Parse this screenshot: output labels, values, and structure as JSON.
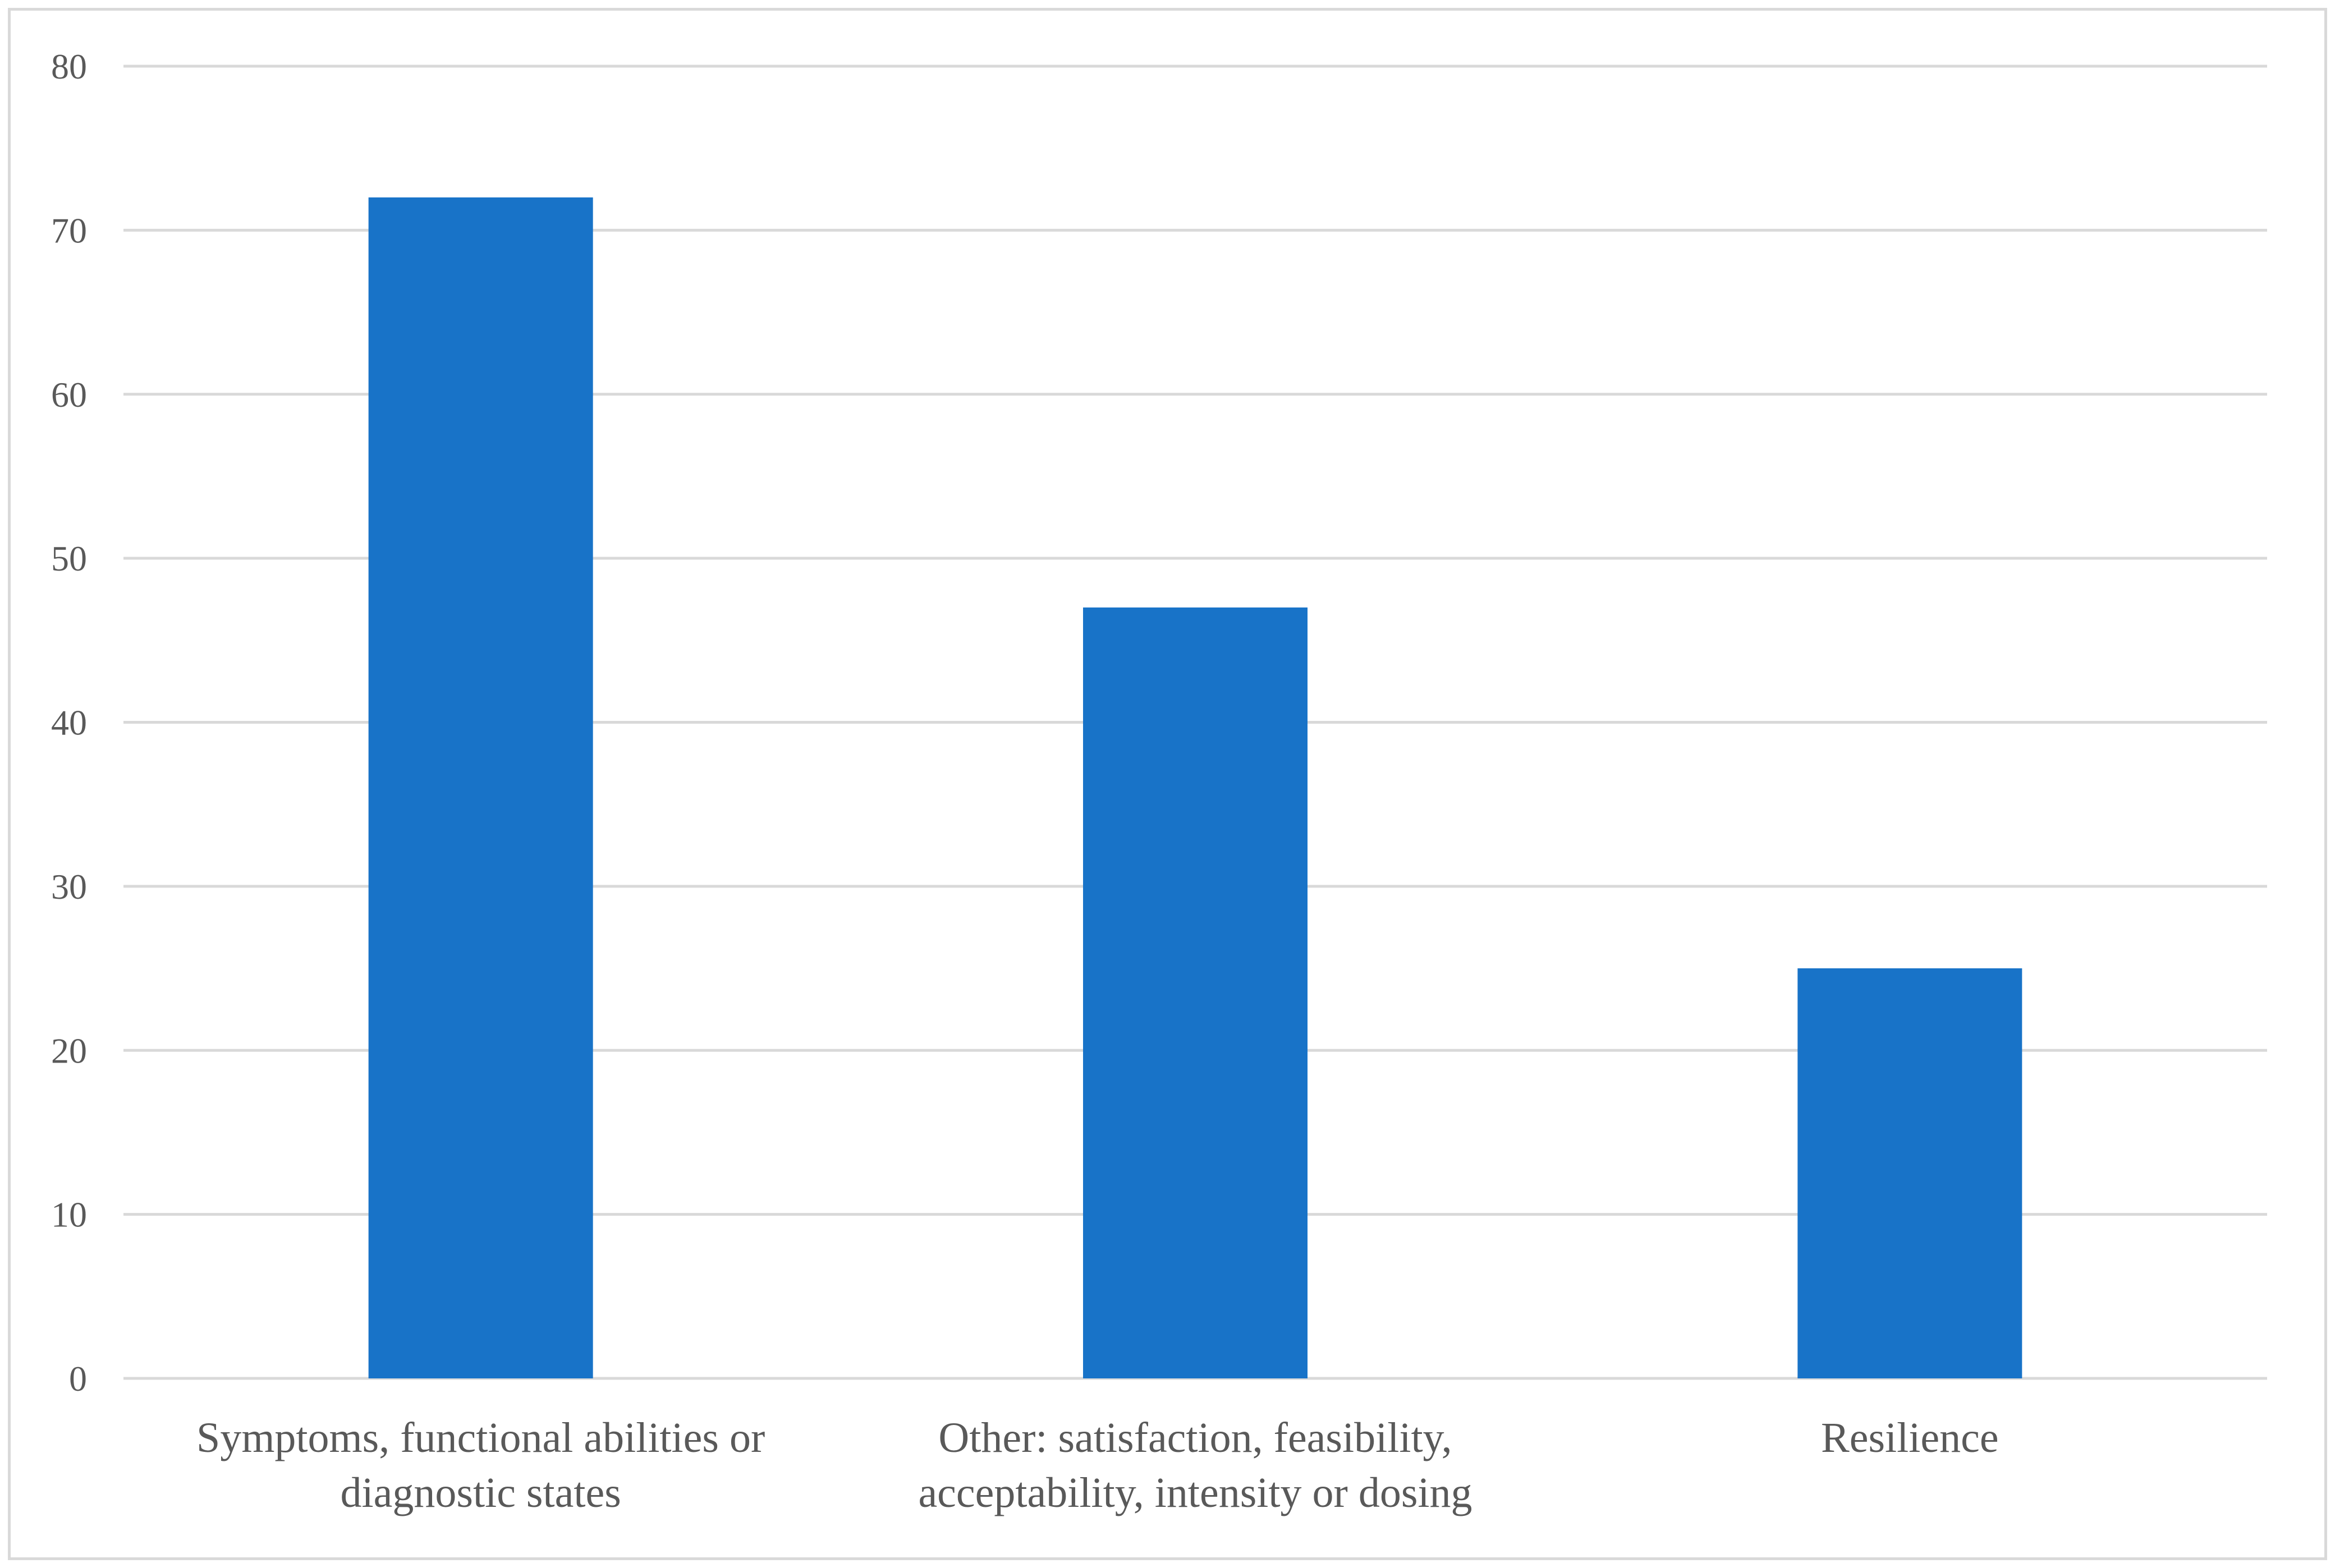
{
  "chart_data": {
    "type": "bar",
    "categories": [
      [
        "Symptoms, functional abilities or",
        "diagnostic states"
      ],
      [
        "Other: satisfaction, feasibility,",
        "acceptability, intensity or dosing"
      ],
      [
        "Resilience"
      ]
    ],
    "values": [
      72,
      47,
      25
    ],
    "ylim": [
      0,
      80
    ],
    "yticks": [
      0,
      10,
      20,
      30,
      40,
      50,
      60,
      70,
      80
    ],
    "title": "",
    "xlabel": "",
    "ylabel": "",
    "grid": true,
    "legend": "none",
    "colors": {
      "bar": "#1873C8",
      "grid": "#d9d9d9",
      "text": "#595959",
      "border": "#d9d9d9"
    }
  }
}
